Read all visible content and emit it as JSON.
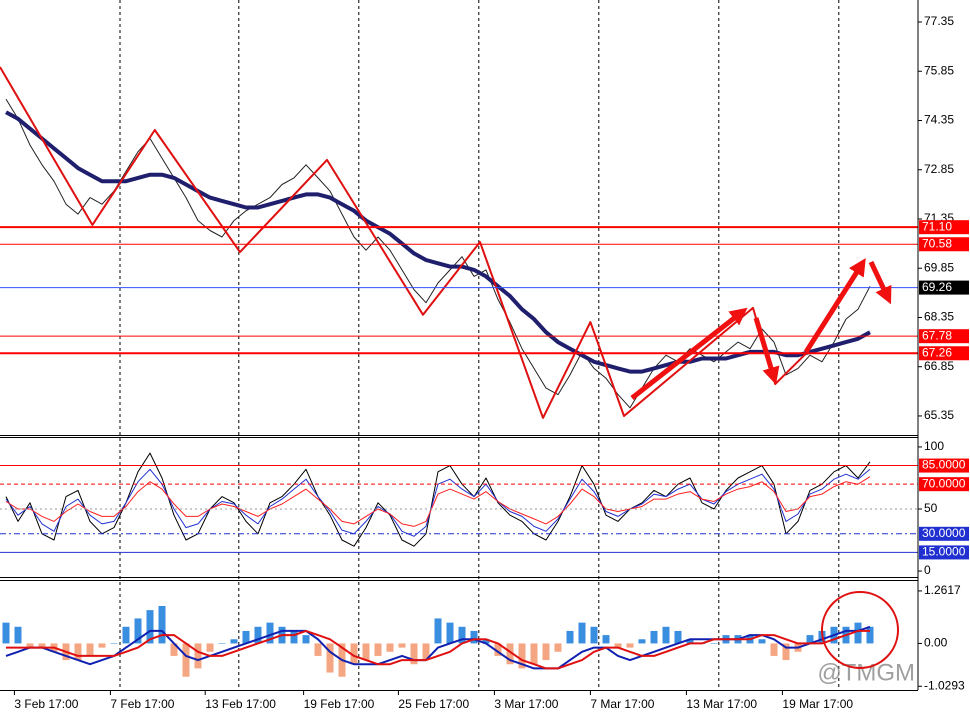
{
  "chart_data": [
    {
      "type": "line",
      "x": [
        0,
        1,
        2,
        3,
        4,
        5,
        6,
        7,
        8,
        9,
        10,
        11,
        12,
        13,
        14,
        15,
        16,
        17,
        18,
        19,
        20,
        21,
        22,
        23,
        24,
        25,
        26,
        27,
        28,
        29,
        30,
        31,
        32,
        33,
        34,
        35,
        36,
        37,
        38,
        39,
        40,
        41,
        42,
        43,
        44,
        45,
        46,
        47,
        48,
        49,
        50,
        51,
        52,
        53,
        54,
        55,
        56,
        57,
        58,
        59,
        60,
        61,
        62,
        63,
        64,
        65,
        66,
        67,
        68,
        69,
        70,
        71,
        72
      ],
      "xlim": [
        -0.5,
        76
      ],
      "xticks": [
        {
          "value": 0.7,
          "label": "3 Feb 17:00"
        },
        {
          "value": 8.7,
          "label": "7 Feb 17:00"
        },
        {
          "value": 16.6,
          "label": "13 Feb 17:00"
        },
        {
          "value": 24.8,
          "label": "19 Feb 17:00"
        },
        {
          "value": 32.7,
          "label": "25 Feb 17:00"
        },
        {
          "value": 40.7,
          "label": "3 Mar 17:00"
        },
        {
          "value": 48.7,
          "label": "7 Mar 17:00"
        },
        {
          "value": 56.7,
          "label": "13 Mar 17:00"
        },
        {
          "value": 64.7,
          "label": "19 Mar 17:00"
        }
      ],
      "xgrid": [
        9.5,
        19.4,
        29.4,
        39.4,
        49.4,
        59.4,
        69.4
      ],
      "ylim": [
        64.77,
        78.02
      ],
      "yticks": [
        77.35,
        75.85,
        74.35,
        72.85,
        71.35,
        69.85,
        68.35,
        66.85,
        65.35
      ],
      "levels": [
        {
          "value": 71.1,
          "label": "71.10",
          "color": "#ff0000",
          "width": 2,
          "box": "#ff0000"
        },
        {
          "value": 70.58,
          "color": "#ff0000",
          "width": 1,
          "box": "#ff0000"
        },
        {
          "value": 69.26,
          "color": "#3050ff",
          "width": 1,
          "box": "#000000"
        },
        {
          "value": 67.78,
          "color": "#ff0000",
          "width": 1,
          "box": "#ff0000"
        },
        {
          "value": 67.26,
          "color": "#ff0000",
          "width": 2,
          "box": "#ff0000"
        }
      ],
      "series": [
        {
          "color": "#222222",
          "width": 1,
          "values": [
            75.0,
            74.4,
            73.6,
            73.0,
            72.5,
            71.8,
            71.5,
            72.0,
            71.8,
            72.2,
            72.8,
            73.4,
            73.8,
            73.2,
            72.6,
            72.0,
            71.3,
            71.0,
            70.8,
            71.3,
            71.6,
            71.8,
            72.0,
            72.4,
            72.6,
            73.0,
            72.6,
            72.2,
            71.5,
            70.8,
            70.4,
            70.8,
            70.4,
            69.8,
            69.2,
            68.8,
            69.4,
            69.8,
            70.2,
            69.6,
            69.8,
            68.9,
            68.2,
            67.4,
            66.8,
            66.2,
            66.0,
            66.6,
            67.3,
            66.8,
            66.5,
            66.0,
            65.6,
            66.2,
            66.8,
            67.2,
            67.0,
            67.4,
            67.2,
            67.0,
            67.3,
            67.6,
            67.4,
            68.0,
            67.6,
            66.6,
            66.8,
            67.2,
            67.0,
            67.6,
            68.3,
            68.6,
            69.3
          ]
        },
        {
          "color": "#1f1f6e",
          "width": 4,
          "values": [
            74.6,
            74.4,
            74.1,
            73.8,
            73.5,
            73.2,
            72.9,
            72.7,
            72.5,
            72.5,
            72.5,
            72.6,
            72.7,
            72.7,
            72.6,
            72.4,
            72.2,
            72.0,
            71.9,
            71.8,
            71.7,
            71.7,
            71.8,
            71.9,
            72.0,
            72.1,
            72.1,
            72.0,
            71.8,
            71.6,
            71.3,
            71.1,
            70.9,
            70.6,
            70.3,
            70.1,
            70.0,
            69.9,
            69.9,
            69.8,
            69.6,
            69.3,
            69.0,
            68.6,
            68.3,
            67.9,
            67.6,
            67.4,
            67.2,
            67.0,
            66.9,
            66.8,
            66.7,
            66.7,
            66.8,
            66.9,
            67.0,
            67.0,
            67.1,
            67.1,
            67.1,
            67.2,
            67.3,
            67.3,
            67.3,
            67.2,
            67.2,
            67.3,
            67.4,
            67.5,
            67.6,
            67.7,
            67.9
          ]
        },
        {
          "color": "#e01010",
          "width": 2,
          "x": [
            -0.5,
            7.2,
            12.4,
            19.5,
            26.75,
            34.75,
            39.5,
            44.75,
            48.7,
            51.5,
            62.25,
            64.1,
            66.8
          ],
          "values": [
            75.98,
            71.17,
            74.06,
            70.34,
            73.15,
            68.43,
            70.65,
            65.29,
            68.21,
            65.35,
            68.64,
            66.32,
            67.3
          ]
        }
      ]
    },
    {
      "type": "line",
      "ylim": [
        -4.8,
        107.2
      ],
      "yticks": [
        100,
        50,
        0
      ],
      "levels": [
        {
          "value": 85,
          "label": "85.0000",
          "color": "#ff0000",
          "width": 1,
          "box": "#ff0000"
        },
        {
          "value": 70,
          "label": "70.0000",
          "color": "#ff0000",
          "width": 1,
          "dash": "4,3",
          "box": "#ff0000"
        },
        {
          "value": 50,
          "color": "#999999",
          "width": 1,
          "dash": "2,3"
        },
        {
          "value": 30,
          "label": "30.0000",
          "color": "#2030d0",
          "width": 1,
          "dash": "6,3,2,3",
          "box": "#2030d0"
        },
        {
          "value": 15,
          "label": "15.0000",
          "color": "#2030d0",
          "width": 1,
          "box": "#2030d0"
        }
      ],
      "series": [
        {
          "color": "#000000",
          "width": 1,
          "values": [
            60,
            40,
            55,
            30,
            25,
            60,
            65,
            40,
            30,
            35,
            55,
            80,
            95,
            75,
            45,
            25,
            30,
            50,
            60,
            55,
            40,
            30,
            55,
            60,
            70,
            82,
            60,
            45,
            25,
            20,
            35,
            55,
            45,
            25,
            20,
            30,
            80,
            85,
            70,
            60,
            75,
            55,
            45,
            40,
            30,
            25,
            40,
            60,
            85,
            70,
            45,
            40,
            50,
            55,
            65,
            60,
            70,
            75,
            55,
            50,
            65,
            75,
            80,
            85,
            70,
            30,
            40,
            65,
            70,
            80,
            85,
            75,
            88
          ]
        },
        {
          "color": "#2030d0",
          "width": 1,
          "values": [
            58,
            45,
            52,
            38,
            32,
            52,
            58,
            45,
            38,
            40,
            55,
            72,
            82,
            70,
            50,
            35,
            38,
            50,
            56,
            54,
            45,
            38,
            52,
            58,
            66,
            74,
            60,
            48,
            33,
            30,
            40,
            52,
            46,
            32,
            28,
            36,
            70,
            74,
            66,
            60,
            70,
            56,
            48,
            44,
            36,
            32,
            42,
            58,
            74,
            64,
            48,
            44,
            50,
            54,
            62,
            60,
            66,
            70,
            58,
            54,
            64,
            70,
            74,
            78,
            66,
            40,
            46,
            62,
            66,
            74,
            78,
            74,
            82
          ]
        },
        {
          "color": "#ff2020",
          "width": 1,
          "values": [
            56,
            50,
            50,
            44,
            40,
            48,
            54,
            48,
            44,
            44,
            52,
            64,
            72,
            66,
            54,
            44,
            44,
            50,
            54,
            52,
            48,
            44,
            50,
            54,
            60,
            66,
            58,
            50,
            40,
            38,
            44,
            50,
            46,
            38,
            36,
            40,
            62,
            66,
            62,
            58,
            64,
            56,
            50,
            46,
            42,
            38,
            44,
            54,
            66,
            60,
            50,
            48,
            50,
            52,
            58,
            58,
            62,
            64,
            58,
            56,
            62,
            66,
            68,
            72,
            64,
            48,
            50,
            60,
            62,
            68,
            72,
            70,
            76
          ]
        }
      ]
    },
    {
      "type": "combo",
      "ylim": [
        -1.119,
        1.5
      ],
      "yticks": [
        1.2617,
        {
          "value": 0,
          "label": "0.00"
        },
        -1.0293
      ],
      "series": [
        {
          "kind": "bar",
          "color": "#3a8ee0",
          "neg_color": "#f4a582",
          "values": [
            0.5,
            0.4,
            -0.1,
            -0.1,
            -0.2,
            -0.4,
            -0.4,
            -0.3,
            -0.1,
            0.0,
            0.4,
            0.6,
            0.8,
            0.9,
            -0.3,
            -0.8,
            -0.6,
            -0.2,
            0.0,
            0.1,
            0.3,
            0.4,
            0.5,
            0.4,
            0.3,
            0.2,
            -0.3,
            -0.7,
            -0.8,
            -0.5,
            -0.4,
            -0.3,
            -0.2,
            -0.1,
            -0.5,
            -0.4,
            0.6,
            0.5,
            0.4,
            0.3,
            0.1,
            -0.3,
            -0.5,
            -0.6,
            -0.5,
            -0.4,
            -0.2,
            0.3,
            0.5,
            0.4,
            0.2,
            -0.1,
            -0.1,
            0.1,
            0.3,
            0.4,
            0.3,
            0.1,
            0.0,
            0.0,
            0.2,
            0.2,
            0.2,
            0.1,
            -0.3,
            -0.4,
            -0.2,
            0.2,
            0.3,
            0.4,
            0.4,
            0.5,
            0.4
          ]
        },
        {
          "kind": "line",
          "color": "#1020b0",
          "width": 2,
          "values": [
            -0.3,
            -0.2,
            -0.1,
            -0.1,
            -0.2,
            -0.3,
            -0.4,
            -0.5,
            -0.4,
            -0.3,
            -0.1,
            0.1,
            0.3,
            0.3,
            0.0,
            -0.3,
            -0.4,
            -0.3,
            -0.2,
            -0.1,
            0.0,
            0.1,
            0.2,
            0.3,
            0.3,
            0.3,
            0.1,
            -0.2,
            -0.4,
            -0.5,
            -0.5,
            -0.5,
            -0.4,
            -0.3,
            -0.4,
            -0.4,
            -0.1,
            0.0,
            0.1,
            0.1,
            0.0,
            -0.2,
            -0.4,
            -0.5,
            -0.6,
            -0.6,
            -0.6,
            -0.4,
            -0.2,
            -0.1,
            -0.1,
            -0.3,
            -0.4,
            -0.3,
            -0.2,
            -0.1,
            0.0,
            0.1,
            0.1,
            0.1,
            0.1,
            0.1,
            0.2,
            0.2,
            0.1,
            -0.1,
            -0.1,
            0.0,
            0.1,
            0.2,
            0.3,
            0.3,
            0.4
          ]
        },
        {
          "kind": "line",
          "color": "#e01010",
          "width": 2,
          "values": [
            -0.1,
            -0.1,
            -0.1,
            -0.1,
            -0.1,
            -0.2,
            -0.3,
            -0.3,
            -0.3,
            -0.3,
            -0.2,
            -0.1,
            0.1,
            0.2,
            0.2,
            0.0,
            -0.2,
            -0.3,
            -0.3,
            -0.2,
            -0.1,
            0.0,
            0.1,
            0.2,
            0.2,
            0.3,
            0.2,
            0.1,
            -0.1,
            -0.3,
            -0.4,
            -0.5,
            -0.5,
            -0.4,
            -0.4,
            -0.4,
            -0.3,
            -0.2,
            0.0,
            0.1,
            0.1,
            0.0,
            -0.2,
            -0.4,
            -0.5,
            -0.6,
            -0.6,
            -0.5,
            -0.4,
            -0.2,
            -0.1,
            -0.1,
            -0.2,
            -0.3,
            -0.3,
            -0.2,
            -0.1,
            0.0,
            0.0,
            0.1,
            0.1,
            0.1,
            0.1,
            0.2,
            0.2,
            0.1,
            0.0,
            0.0,
            0.0,
            0.1,
            0.2,
            0.3,
            0.3
          ]
        }
      ],
      "watermark": "@TMGM"
    }
  ]
}
